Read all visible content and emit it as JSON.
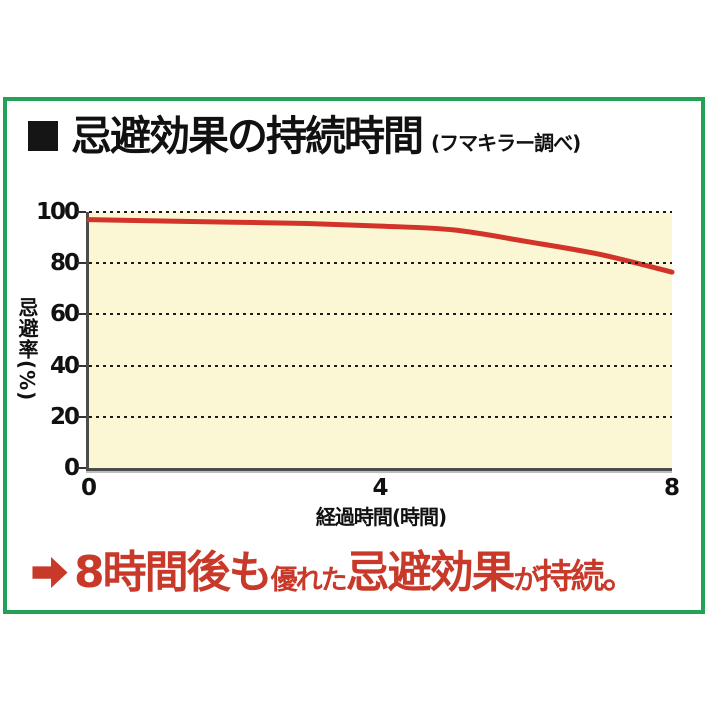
{
  "page": {
    "background": "#ffffff"
  },
  "frame": {
    "border_color": "#23a257"
  },
  "header": {
    "bullet_icon": "black-square",
    "title": "忌避効果の持続時間",
    "subtitle": "(フマキラー調べ)"
  },
  "chart_data": {
    "type": "line",
    "title": "忌避効果の持続時間",
    "source_note": "(フマキラー調べ)",
    "x": [
      0,
      1,
      2,
      3,
      4,
      5,
      6,
      7,
      8
    ],
    "series": [
      {
        "name": "忌避率",
        "values": [
          97,
          96.5,
          96,
          95.5,
          94.5,
          93,
          88.5,
          83.5,
          76.5
        ],
        "color": "#d2342a"
      }
    ],
    "xlabel": "経過時間(時間)",
    "ylabel": "忌避率(%)",
    "xlim": [
      0,
      8
    ],
    "ylim": [
      0,
      100
    ],
    "x_ticks": [
      0,
      4,
      8
    ],
    "y_ticks": [
      0,
      20,
      40,
      60,
      80,
      100
    ],
    "grid": "horizontal-dotted",
    "grid_color": "#1b1b1b",
    "plot_background": "#fbf7d4",
    "legend": "none"
  },
  "footer": {
    "arrow_icon": "arrow-right",
    "color": "#c8392a",
    "segments": [
      {
        "text": "8時間後も",
        "emphasis": "large"
      },
      {
        "text": "優れた",
        "emphasis": "small"
      },
      {
        "text": "忌避効果",
        "emphasis": "large"
      },
      {
        "text": "が",
        "emphasis": "small"
      },
      {
        "text": "持続。",
        "emphasis": "medium"
      }
    ]
  }
}
